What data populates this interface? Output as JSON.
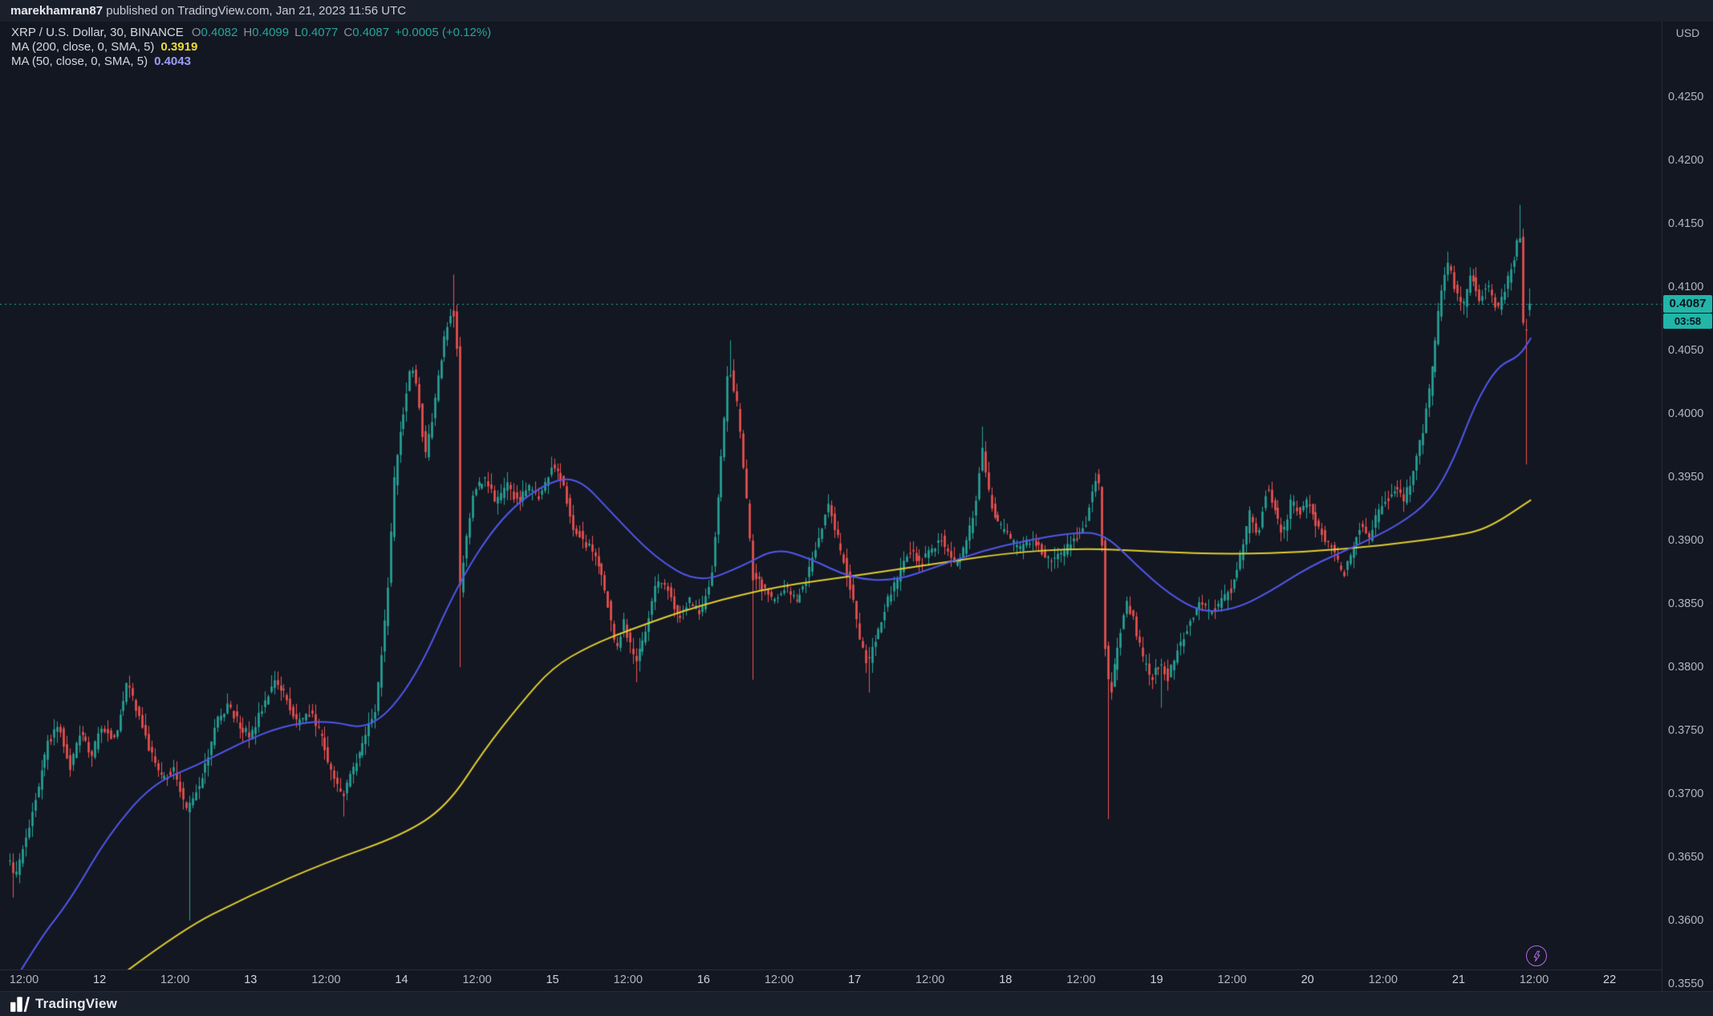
{
  "banner": {
    "username": "marekhamran87",
    "rest": " published on TradingView.com, Jan 21, 2023 11:56 UTC"
  },
  "legend": {
    "title": "XRP / U.S. Dollar, 30, BINANCE",
    "ohlc": [
      {
        "k": "O",
        "v": "0.4082"
      },
      {
        "k": "H",
        "v": "0.4099"
      },
      {
        "k": "L",
        "v": "0.4077"
      },
      {
        "k": "C",
        "v": "0.4087"
      }
    ],
    "change": "+0.0005 (+0.12%)",
    "ma200_label": "MA (200, close, 0, SMA, 5)",
    "ma200_value": "0.3919",
    "ma50_label": "MA (50, close, 0, SMA, 5)",
    "ma50_value": "0.4043"
  },
  "price_axis": {
    "currency": "USD",
    "last_price": "0.4087",
    "countdown": "03:58"
  },
  "footer": {
    "brand": "TradingView"
  },
  "colors": {
    "background": "#131722",
    "panel": "#1a1f2c",
    "up": "#26a69a",
    "down": "#ef5350",
    "ma50": "#5157eb",
    "ma50_value": "#9b9ef7",
    "ma200": "#e0cd2f",
    "ma200_value": "#ecdc3a",
    "axis_text": "#b2b5be",
    "title_text": "#d5d9e0",
    "ohlc_letter": "#8a8f9b",
    "last_price_bg": "#22b5a8",
    "last_price_text": "#0b1620",
    "boost": "#b565e8"
  },
  "chart_data": {
    "type": "candlestick",
    "symbol": "XRP/USD",
    "exchange": "BINANCE",
    "interval_minutes": 30,
    "ylabel": "USD",
    "x_unit": "day_of_january_2023_utc",
    "x_range": [
      11.396,
      21.479
    ],
    "y_range_visible": [
      0.3561,
      0.431
    ],
    "current_price": 0.4087,
    "last_candle": {
      "open": 0.4082,
      "high": 0.4099,
      "low": 0.4077,
      "close": 0.4087,
      "change": "+0.0005",
      "change_pct": "+0.12%"
    },
    "ma50": {
      "name": "MA 50 SMA close",
      "last_value": 0.4043,
      "points": [
        [
          11.4,
          0.3545
        ],
        [
          11.6,
          0.3585
        ],
        [
          11.8,
          0.3615
        ],
        [
          12.06,
          0.3668
        ],
        [
          12.35,
          0.3708
        ],
        [
          12.64,
          0.3722
        ],
        [
          12.93,
          0.374
        ],
        [
          13.22,
          0.3754
        ],
        [
          13.51,
          0.3758
        ],
        [
          13.8,
          0.375
        ],
        [
          14.09,
          0.379
        ],
        [
          14.38,
          0.3868
        ],
        [
          14.67,
          0.392
        ],
        [
          14.96,
          0.3946
        ],
        [
          15.17,
          0.395
        ],
        [
          15.39,
          0.3922
        ],
        [
          15.68,
          0.3886
        ],
        [
          15.97,
          0.3866
        ],
        [
          16.26,
          0.388
        ],
        [
          16.48,
          0.3894
        ],
        [
          16.7,
          0.3886
        ],
        [
          16.98,
          0.387
        ],
        [
          17.27,
          0.3868
        ],
        [
          17.56,
          0.388
        ],
        [
          17.85,
          0.3892
        ],
        [
          18.14,
          0.39
        ],
        [
          18.43,
          0.3906
        ],
        [
          18.65,
          0.3906
        ],
        [
          18.87,
          0.388
        ],
        [
          19.08,
          0.3858
        ],
        [
          19.3,
          0.3843
        ],
        [
          19.52,
          0.3846
        ],
        [
          19.73,
          0.3858
        ],
        [
          20.02,
          0.388
        ],
        [
          20.31,
          0.3895
        ],
        [
          20.6,
          0.3912
        ],
        [
          20.82,
          0.3932
        ],
        [
          20.97,
          0.3964
        ],
        [
          21.11,
          0.4008
        ],
        [
          21.26,
          0.4038
        ],
        [
          21.4,
          0.4045
        ],
        [
          21.48,
          0.406
        ]
      ]
    },
    "ma200": {
      "name": "MA 200 SMA close",
      "last_value": 0.3919,
      "points": [
        [
          11.97,
          0.3541
        ],
        [
          12.5,
          0.359
        ],
        [
          13.0,
          0.362
        ],
        [
          13.5,
          0.3646
        ],
        [
          14.0,
          0.3667
        ],
        [
          14.3,
          0.369
        ],
        [
          14.55,
          0.3735
        ],
        [
          14.78,
          0.377
        ],
        [
          15.0,
          0.38
        ],
        [
          15.25,
          0.3817
        ],
        [
          15.5,
          0.3829
        ],
        [
          16.0,
          0.385
        ],
        [
          16.5,
          0.3864
        ],
        [
          17.0,
          0.3872
        ],
        [
          17.5,
          0.3881
        ],
        [
          18.0,
          0.389
        ],
        [
          18.5,
          0.3894
        ],
        [
          19.0,
          0.3891
        ],
        [
          19.5,
          0.3889
        ],
        [
          20.0,
          0.3891
        ],
        [
          20.5,
          0.3896
        ],
        [
          21.0,
          0.3904
        ],
        [
          21.2,
          0.391
        ],
        [
          21.48,
          0.3932
        ]
      ]
    },
    "price_path": [
      [
        11.399,
        0.365
      ],
      [
        11.449,
        0.3635
      ],
      [
        11.5,
        0.3655
      ],
      [
        11.594,
        0.37
      ],
      [
        11.666,
        0.374
      ],
      [
        11.739,
        0.3755
      ],
      [
        11.811,
        0.372
      ],
      [
        11.884,
        0.375
      ],
      [
        11.956,
        0.373
      ],
      [
        12.028,
        0.3755
      ],
      [
        12.101,
        0.374
      ],
      [
        12.195,
        0.379
      ],
      [
        12.281,
        0.3755
      ],
      [
        12.354,
        0.373
      ],
      [
        12.426,
        0.371
      ],
      [
        12.499,
        0.372
      ],
      [
        12.585,
        0.3685
      ],
      [
        12.643,
        0.37
      ],
      [
        12.716,
        0.3725
      ],
      [
        12.788,
        0.376
      ],
      [
        12.86,
        0.377
      ],
      [
        12.933,
        0.3755
      ],
      [
        13.005,
        0.3745
      ],
      [
        13.078,
        0.3765
      ],
      [
        13.164,
        0.379
      ],
      [
        13.237,
        0.378
      ],
      [
        13.309,
        0.3755
      ],
      [
        13.403,
        0.3765
      ],
      [
        13.475,
        0.3745
      ],
      [
        13.548,
        0.3715
      ],
      [
        13.62,
        0.37
      ],
      [
        13.692,
        0.372
      ],
      [
        13.765,
        0.3745
      ],
      [
        13.837,
        0.3765
      ],
      [
        13.91,
        0.385
      ],
      [
        13.96,
        0.395
      ],
      [
        14.018,
        0.4
      ],
      [
        14.076,
        0.404
      ],
      [
        14.12,
        0.401
      ],
      [
        14.163,
        0.3965
      ],
      [
        14.221,
        0.4005
      ],
      [
        14.293,
        0.406
      ],
      [
        14.344,
        0.4085
      ],
      [
        14.373,
        0.407
      ],
      [
        14.394,
        0.386
      ],
      [
        14.438,
        0.3905
      ],
      [
        14.488,
        0.394
      ],
      [
        14.561,
        0.395
      ],
      [
        14.633,
        0.393
      ],
      [
        14.705,
        0.3945
      ],
      [
        14.778,
        0.393
      ],
      [
        14.85,
        0.3942
      ],
      [
        14.922,
        0.3935
      ],
      [
        14.995,
        0.3958
      ],
      [
        15.067,
        0.395
      ],
      [
        15.139,
        0.3912
      ],
      [
        15.212,
        0.39
      ],
      [
        15.284,
        0.389
      ],
      [
        15.357,
        0.3862
      ],
      [
        15.429,
        0.3812
      ],
      [
        15.479,
        0.3835
      ],
      [
        15.559,
        0.3802
      ],
      [
        15.624,
        0.383
      ],
      [
        15.697,
        0.387
      ],
      [
        15.769,
        0.3862
      ],
      [
        15.842,
        0.384
      ],
      [
        15.914,
        0.3852
      ],
      [
        15.986,
        0.3842
      ],
      [
        16.059,
        0.3872
      ],
      [
        16.116,
        0.395
      ],
      [
        16.174,
        0.404
      ],
      [
        16.225,
        0.4012
      ],
      [
        16.276,
        0.3952
      ],
      [
        16.333,
        0.3872
      ],
      [
        16.406,
        0.3862
      ],
      [
        16.478,
        0.3852
      ],
      [
        16.551,
        0.3862
      ],
      [
        16.623,
        0.3852
      ],
      [
        16.695,
        0.3872
      ],
      [
        16.768,
        0.39
      ],
      [
        16.826,
        0.393
      ],
      [
        16.898,
        0.39
      ],
      [
        16.97,
        0.387
      ],
      [
        17.043,
        0.3822
      ],
      [
        17.093,
        0.3802
      ],
      [
        17.151,
        0.3822
      ],
      [
        17.224,
        0.3852
      ],
      [
        17.296,
        0.3872
      ],
      [
        17.368,
        0.3892
      ],
      [
        17.441,
        0.3882
      ],
      [
        17.513,
        0.3892
      ],
      [
        17.585,
        0.3902
      ],
      [
        17.658,
        0.3882
      ],
      [
        17.73,
        0.3892
      ],
      [
        17.803,
        0.3922
      ],
      [
        17.853,
        0.3972
      ],
      [
        17.904,
        0.3932
      ],
      [
        17.962,
        0.3912
      ],
      [
        18.034,
        0.3902
      ],
      [
        18.107,
        0.3892
      ],
      [
        18.179,
        0.3902
      ],
      [
        18.251,
        0.3892
      ],
      [
        18.324,
        0.3882
      ],
      [
        18.396,
        0.3892
      ],
      [
        18.468,
        0.3902
      ],
      [
        18.541,
        0.3912
      ],
      [
        18.599,
        0.3952
      ],
      [
        18.635,
        0.394
      ],
      [
        18.671,
        0.38
      ],
      [
        18.707,
        0.3782
      ],
      [
        18.758,
        0.3822
      ],
      [
        18.816,
        0.3852
      ],
      [
        18.866,
        0.3832
      ],
      [
        18.924,
        0.3802
      ],
      [
        18.975,
        0.3792
      ],
      [
        19.026,
        0.3802
      ],
      [
        19.083,
        0.3792
      ],
      [
        19.141,
        0.3812
      ],
      [
        19.214,
        0.3832
      ],
      [
        19.286,
        0.3852
      ],
      [
        19.358,
        0.3842
      ],
      [
        19.431,
        0.3852
      ],
      [
        19.503,
        0.3862
      ],
      [
        19.576,
        0.3892
      ],
      [
        19.626,
        0.3922
      ],
      [
        19.677,
        0.3902
      ],
      [
        19.735,
        0.3942
      ],
      [
        19.793,
        0.3922
      ],
      [
        19.843,
        0.3902
      ],
      [
        19.901,
        0.3932
      ],
      [
        19.952,
        0.3922
      ],
      [
        20.01,
        0.3932
      ],
      [
        20.068,
        0.3912
      ],
      [
        20.125,
        0.3902
      ],
      [
        20.183,
        0.3892
      ],
      [
        20.241,
        0.3872
      ],
      [
        20.299,
        0.3892
      ],
      [
        20.357,
        0.3912
      ],
      [
        20.415,
        0.3902
      ],
      [
        20.473,
        0.3922
      ],
      [
        20.531,
        0.3932
      ],
      [
        20.589,
        0.3942
      ],
      [
        20.647,
        0.3932
      ],
      [
        20.704,
        0.3952
      ],
      [
        20.762,
        0.3982
      ],
      [
        20.82,
        0.4022
      ],
      [
        20.878,
        0.4082
      ],
      [
        20.929,
        0.4122
      ],
      [
        20.979,
        0.4102
      ],
      [
        21.03,
        0.4082
      ],
      [
        21.088,
        0.4112
      ],
      [
        21.146,
        0.4092
      ],
      [
        21.204,
        0.4102
      ],
      [
        21.262,
        0.4082
      ],
      [
        21.32,
        0.4102
      ],
      [
        21.378,
        0.4122
      ],
      [
        21.414,
        0.415
      ],
      [
        21.443,
        0.405
      ],
      [
        21.472,
        0.4087
      ]
    ],
    "spike_wicks": [
      {
        "t": 11.43,
        "low": 0.3618
      },
      {
        "t": 12.585,
        "low": 0.36
      },
      {
        "t": 13.62,
        "low": 0.3682
      },
      {
        "t": 14.344,
        "high": 0.411
      },
      {
        "t": 14.394,
        "low": 0.38
      },
      {
        "t": 15.559,
        "low": 0.3788
      },
      {
        "t": 16.174,
        "high": 0.4058
      },
      {
        "t": 16.333,
        "low": 0.379
      },
      {
        "t": 17.093,
        "low": 0.378
      },
      {
        "t": 17.853,
        "high": 0.399
      },
      {
        "t": 18.671,
        "low": 0.368
      },
      {
        "t": 19.026,
        "low": 0.3768
      },
      {
        "t": 21.414,
        "high": 0.4165
      },
      {
        "t": 21.443,
        "low": 0.396
      }
    ],
    "price_ticks": [
      "0.4250",
      "0.4200",
      "0.4150",
      "0.4100",
      "0.4050",
      "0.4000",
      "0.3950",
      "0.3900",
      "0.3850",
      "0.3800",
      "0.3750",
      "0.3700",
      "0.3650",
      "0.3600",
      "0.3550"
    ],
    "time_ticks": [
      {
        "t": 11.5,
        "label": "12:00"
      },
      {
        "t": 12,
        "label": "12"
      },
      {
        "t": 12.5,
        "label": "12:00"
      },
      {
        "t": 13,
        "label": "13"
      },
      {
        "t": 13.5,
        "label": "12:00"
      },
      {
        "t": 14,
        "label": "14"
      },
      {
        "t": 14.5,
        "label": "12:00"
      },
      {
        "t": 15,
        "label": "15"
      },
      {
        "t": 15.5,
        "label": "12:00"
      },
      {
        "t": 16,
        "label": "16"
      },
      {
        "t": 16.5,
        "label": "12:00"
      },
      {
        "t": 17,
        "label": "17"
      },
      {
        "t": 17.5,
        "label": "12:00"
      },
      {
        "t": 18,
        "label": "18"
      },
      {
        "t": 18.5,
        "label": "12:00"
      },
      {
        "t": 19,
        "label": "19"
      },
      {
        "t": 19.5,
        "label": "12:00"
      },
      {
        "t": 20,
        "label": "20"
      },
      {
        "t": 20.5,
        "label": "12:00"
      },
      {
        "t": 21,
        "label": "21"
      },
      {
        "t": 21.5,
        "label": "12:00"
      },
      {
        "t": 22,
        "label": "22"
      }
    ]
  }
}
